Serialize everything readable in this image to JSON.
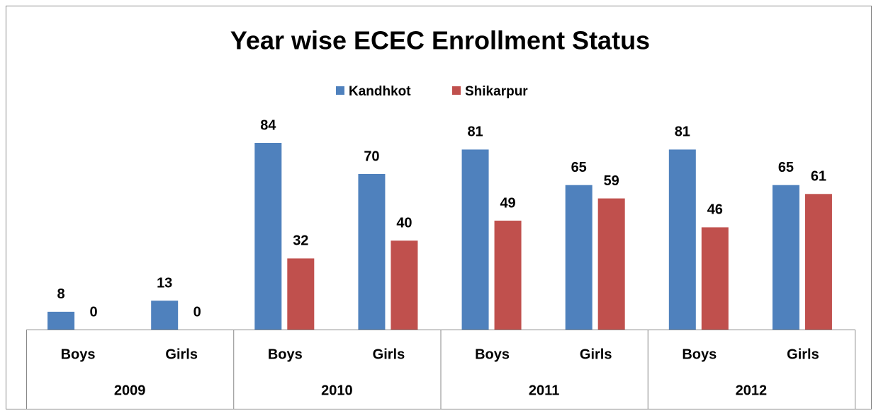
{
  "chart_data": {
    "type": "bar",
    "title": "Year wise ECEC Enrollment Status",
    "categories": [
      "Boys",
      "Girls",
      "Boys",
      "Girls",
      "Boys",
      "Girls",
      "Boys",
      "Girls"
    ],
    "groups": [
      "2009",
      "2010",
      "2011",
      "2012"
    ],
    "series": [
      {
        "name": "Kandhkot",
        "color": "#4f81bd",
        "values": [
          8,
          13,
          84,
          70,
          81,
          65,
          81,
          65
        ]
      },
      {
        "name": "Shikarpur",
        "color": "#c0504d",
        "values": [
          0,
          0,
          32,
          40,
          49,
          59,
          46,
          61
        ]
      }
    ],
    "legend": "top"
  }
}
